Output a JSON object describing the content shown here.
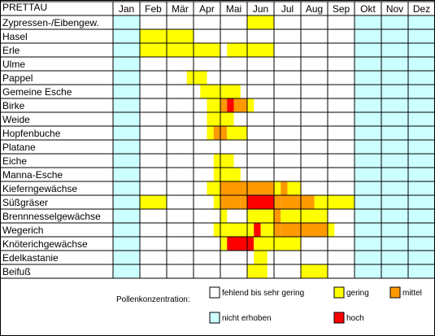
{
  "chart_data": {
    "type": "heatmap",
    "title": "PRETTAU",
    "months": [
      "Jan",
      "Feb",
      "Mär",
      "Apr",
      "Mai",
      "Jun",
      "Jul",
      "Aug",
      "Sep",
      "Okt",
      "Nov",
      "Dez"
    ],
    "levels": {
      "0": {
        "label": "fehlend bis sehr gering",
        "color": "#ffffff"
      },
      "1": {
        "label": "gering",
        "color": "#ffff00"
      },
      "2": {
        "label": "mittel",
        "color": "#ff9900"
      },
      "3": {
        "label": "hoch",
        "color": "#ff0000"
      },
      "n": {
        "label": "nicht erhoben",
        "color": "#ccffff"
      }
    },
    "legend_title": "Pollenkonzentration:",
    "rows": [
      {
        "name": "Zypressen-/Eibengew.",
        "segments": [
          [
            5.0,
            6.0,
            1
          ]
        ]
      },
      {
        "name": "Hasel",
        "segments": [
          [
            1.0,
            3.0,
            1
          ]
        ]
      },
      {
        "name": "Erle",
        "segments": [
          [
            1.0,
            4.0,
            1
          ],
          [
            4.25,
            6.0,
            1
          ]
        ]
      },
      {
        "name": "Ulme",
        "segments": []
      },
      {
        "name": "Pappel",
        "segments": [
          [
            2.75,
            3.5,
            1
          ]
        ]
      },
      {
        "name": "Gemeine Esche",
        "segments": [
          [
            3.25,
            4.0,
            1
          ],
          [
            4.0,
            4.75,
            1
          ]
        ]
      },
      {
        "name": "Birke",
        "segments": [
          [
            3.5,
            4.0,
            1
          ],
          [
            4.0,
            4.25,
            2
          ],
          [
            4.25,
            4.5,
            3
          ],
          [
            4.5,
            5.0,
            2
          ],
          [
            5.0,
            5.25,
            1
          ]
        ]
      },
      {
        "name": "Weide",
        "segments": [
          [
            3.5,
            4.5,
            1
          ]
        ]
      },
      {
        "name": "Hopfenbuche",
        "segments": [
          [
            3.5,
            3.75,
            1
          ],
          [
            3.75,
            4.25,
            2
          ],
          [
            4.25,
            5.0,
            1
          ]
        ]
      },
      {
        "name": "Platane",
        "segments": []
      },
      {
        "name": "Eiche",
        "segments": [
          [
            3.75,
            4.5,
            1
          ]
        ]
      },
      {
        "name": "Manna-Esche",
        "segments": [
          [
            3.75,
            4.25,
            1
          ],
          [
            4.25,
            4.75,
            1
          ]
        ]
      },
      {
        "name": "Kieferngewächse",
        "segments": [
          [
            3.5,
            4.0,
            1
          ],
          [
            4.0,
            6.0,
            2
          ],
          [
            6.0,
            6.25,
            1
          ],
          [
            6.25,
            6.5,
            2
          ],
          [
            6.5,
            7.0,
            1
          ]
        ]
      },
      {
        "name": "Süßgräser",
        "segments": [
          [
            1.0,
            2.0,
            1
          ],
          [
            3.75,
            4.0,
            1
          ],
          [
            4.0,
            4.75,
            2
          ],
          [
            4.75,
            5.0,
            2
          ],
          [
            5.0,
            6.0,
            3
          ],
          [
            6.0,
            6.25,
            2
          ],
          [
            6.25,
            7.5,
            2
          ],
          [
            7.5,
            9.0,
            1
          ]
        ]
      },
      {
        "name": "Brennnesselgewächse",
        "segments": [
          [
            4.0,
            4.25,
            1
          ],
          [
            5.0,
            6.0,
            1
          ],
          [
            6.0,
            6.25,
            2
          ],
          [
            6.25,
            6.5,
            1
          ],
          [
            6.5,
            7.0,
            1
          ],
          [
            7.0,
            7.75,
            1
          ],
          [
            7.75,
            8.0,
            1
          ]
        ]
      },
      {
        "name": "Wegerich",
        "segments": [
          [
            3.75,
            4.25,
            1
          ],
          [
            4.25,
            5.0,
            1
          ],
          [
            5.0,
            5.25,
            1
          ],
          [
            5.25,
            5.5,
            3
          ],
          [
            5.5,
            6.0,
            1
          ],
          [
            6.0,
            6.25,
            2
          ],
          [
            6.25,
            7.0,
            2
          ],
          [
            7.0,
            8.0,
            2
          ],
          [
            8.0,
            8.25,
            1
          ]
        ]
      },
      {
        "name": "Knöterichgewächse",
        "segments": [
          [
            4.0,
            4.25,
            1
          ],
          [
            4.25,
            5.0,
            3
          ],
          [
            5.0,
            5.25,
            3
          ],
          [
            5.25,
            5.5,
            1
          ],
          [
            5.5,
            7.0,
            1
          ]
        ]
      },
      {
        "name": "Edelkastanie",
        "segments": [
          [
            5.25,
            5.75,
            1
          ]
        ]
      },
      {
        "name": "Beifuß",
        "segments": [
          [
            5.0,
            5.75,
            1
          ],
          [
            7.0,
            8.0,
            1
          ]
        ]
      }
    ]
  }
}
